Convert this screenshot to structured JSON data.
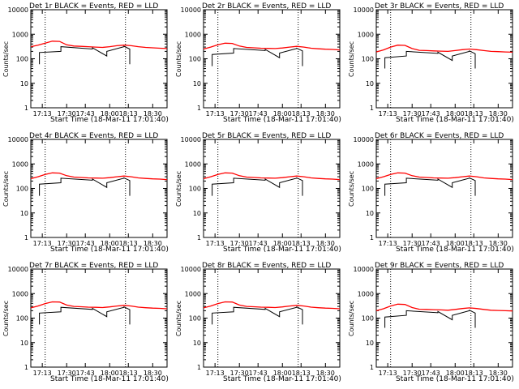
{
  "chart_data": [
    {
      "type": "line",
      "title": "Det 1r BLACK = Events, RED = LLD",
      "xlabel": "Start Time (18-Mar-11 17:01:40)",
      "ylabel": "Counts/sec",
      "yscale": "log",
      "ylim": [
        1,
        10000
      ],
      "xlim": [
        "17:05",
        "18:40"
      ],
      "x_ticks": [
        "17:13",
        "17:30",
        "17:43",
        "18:00",
        "18:13",
        "18:30"
      ],
      "y_ticks": [
        "1",
        "10",
        "100",
        "1000",
        "10000"
      ],
      "vlines": [
        "17:15",
        "18:11"
      ],
      "series": [
        {
          "color": "#ff0000",
          "x": [
            "17:05",
            "17:10",
            "17:15",
            "17:20",
            "17:25",
            "17:30",
            "17:35",
            "17:40",
            "17:45",
            "17:50",
            "17:55",
            "18:00",
            "18:05",
            "18:10",
            "18:15",
            "18:20",
            "18:25",
            "18:30",
            "18:35",
            "18:40"
          ],
          "values": [
            310,
            360,
            430,
            520,
            510,
            370,
            330,
            320,
            310,
            300,
            290,
            310,
            340,
            360,
            340,
            310,
            290,
            280,
            270,
            260
          ]
        },
        {
          "color": "#000000",
          "x": [
            "17:11",
            "17:11",
            "17:26",
            "17:26",
            "17:48",
            "17:48",
            "17:58",
            "17:58",
            "18:10",
            "18:10",
            "18:14",
            "18:14"
          ],
          "values": [
            60,
            180,
            200,
            310,
            250,
            280,
            130,
            200,
            310,
            320,
            250,
            60
          ]
        }
      ]
    },
    {
      "type": "line",
      "title": "Det 2r BLACK = Events, RED = LLD",
      "xlabel": "Start Time (18-Mar-11 17:01:40)",
      "ylabel": "Counts/sec",
      "yscale": "log",
      "ylim": [
        1,
        10000
      ],
      "xlim": [
        "17:05",
        "18:40"
      ],
      "x_ticks": [
        "17:13",
        "17:30",
        "17:43",
        "18:00",
        "18:13",
        "18:30"
      ],
      "y_ticks": [
        "1",
        "10",
        "100",
        "1000",
        "10000"
      ],
      "vlines": [
        "17:15",
        "18:11"
      ],
      "series": [
        {
          "color": "#ff0000",
          "x": [
            "17:05",
            "17:10",
            "17:15",
            "17:20",
            "17:25",
            "17:30",
            "17:35",
            "17:40",
            "17:45",
            "17:50",
            "17:55",
            "18:00",
            "18:05",
            "18:10",
            "18:15",
            "18:20",
            "18:25",
            "18:30",
            "18:35",
            "18:40"
          ],
          "values": [
            250,
            300,
            370,
            430,
            420,
            330,
            290,
            280,
            270,
            265,
            260,
            275,
            300,
            320,
            300,
            270,
            255,
            245,
            240,
            230
          ]
        },
        {
          "color": "#000000",
          "x": [
            "17:11",
            "17:11",
            "17:26",
            "17:26",
            "17:48",
            "17:48",
            "17:58",
            "17:58",
            "18:10",
            "18:10",
            "18:14",
            "18:14"
          ],
          "values": [
            50,
            150,
            170,
            260,
            215,
            240,
            110,
            170,
            260,
            270,
            210,
            50
          ]
        }
      ]
    },
    {
      "type": "line",
      "title": "Det 3r BLACK = Events, RED = LLD",
      "xlabel": "Start Time (18-Mar-11 17:01:40)",
      "ylabel": "Counts/sec",
      "yscale": "log",
      "ylim": [
        1,
        10000
      ],
      "xlim": [
        "17:05",
        "18:40"
      ],
      "x_ticks": [
        "17:13",
        "17:30",
        "17:43",
        "18:00",
        "18:13",
        "18:30"
      ],
      "y_ticks": [
        "1",
        "10",
        "100",
        "1000",
        "10000"
      ],
      "vlines": [
        "17:15",
        "18:11"
      ],
      "series": [
        {
          "color": "#ff0000",
          "x": [
            "17:05",
            "17:10",
            "17:15",
            "17:20",
            "17:25",
            "17:30",
            "17:35",
            "17:40",
            "17:45",
            "17:50",
            "17:55",
            "18:00",
            "18:05",
            "18:10",
            "18:15",
            "18:20",
            "18:25",
            "18:30",
            "18:35",
            "18:40"
          ],
          "values": [
            190,
            230,
            300,
            360,
            350,
            260,
            220,
            215,
            210,
            205,
            200,
            215,
            235,
            250,
            235,
            215,
            200,
            195,
            190,
            185
          ]
        },
        {
          "color": "#000000",
          "x": [
            "17:11",
            "17:11",
            "17:26",
            "17:26",
            "17:48",
            "17:48",
            "17:58",
            "17:58",
            "18:10",
            "18:10",
            "18:14",
            "18:14"
          ],
          "values": [
            40,
            110,
            130,
            200,
            165,
            185,
            85,
            130,
            200,
            210,
            160,
            40
          ]
        }
      ]
    },
    {
      "type": "line",
      "title": "Det 4r BLACK = Events, RED = LLD",
      "xlabel": "Start Time (18-Mar-11 17:01:40)",
      "ylabel": "Counts/sec",
      "yscale": "log",
      "ylim": [
        1,
        10000
      ],
      "xlim": [
        "17:05",
        "18:40"
      ],
      "x_ticks": [
        "17:13",
        "17:30",
        "17:43",
        "18:00",
        "18:13",
        "18:30"
      ],
      "y_ticks": [
        "1",
        "10",
        "100",
        "1000",
        "10000"
      ],
      "vlines": [
        "17:15",
        "18:11"
      ],
      "series": [
        {
          "color": "#ff0000",
          "x": [
            "17:05",
            "17:10",
            "17:15",
            "17:20",
            "17:25",
            "17:30",
            "17:35",
            "17:40",
            "17:45",
            "17:50",
            "17:55",
            "18:00",
            "18:05",
            "18:10",
            "18:15",
            "18:20",
            "18:25",
            "18:30",
            "18:35",
            "18:40"
          ],
          "values": [
            250,
            300,
            370,
            430,
            420,
            330,
            290,
            280,
            270,
            265,
            260,
            275,
            300,
            320,
            300,
            270,
            255,
            245,
            240,
            230
          ]
        },
        {
          "color": "#000000",
          "x": [
            "17:11",
            "17:11",
            "17:26",
            "17:26",
            "17:48",
            "17:48",
            "17:58",
            "17:58",
            "18:10",
            "18:10",
            "18:14",
            "18:14"
          ],
          "values": [
            50,
            150,
            170,
            260,
            215,
            240,
            110,
            170,
            260,
            270,
            210,
            50
          ]
        }
      ]
    },
    {
      "type": "line",
      "title": "Det 5r BLACK = Events, RED = LLD",
      "xlabel": "Start Time (18-Mar-11 17:01:40)",
      "ylabel": "Counts/sec",
      "yscale": "log",
      "ylim": [
        1,
        10000
      ],
      "xlim": [
        "17:05",
        "18:40"
      ],
      "x_ticks": [
        "17:13",
        "17:30",
        "17:43",
        "18:00",
        "18:13",
        "18:30"
      ],
      "y_ticks": [
        "1",
        "10",
        "100",
        "1000",
        "10000"
      ],
      "vlines": [
        "17:15",
        "18:11"
      ],
      "series": [
        {
          "color": "#ff0000",
          "x": [
            "17:05",
            "17:10",
            "17:15",
            "17:20",
            "17:25",
            "17:30",
            "17:35",
            "17:40",
            "17:45",
            "17:50",
            "17:55",
            "18:00",
            "18:05",
            "18:10",
            "18:15",
            "18:20",
            "18:25",
            "18:30",
            "18:35",
            "18:40"
          ],
          "values": [
            250,
            300,
            370,
            430,
            420,
            330,
            290,
            280,
            270,
            265,
            260,
            275,
            300,
            320,
            300,
            270,
            255,
            245,
            240,
            230
          ]
        },
        {
          "color": "#000000",
          "x": [
            "17:11",
            "17:11",
            "17:26",
            "17:26",
            "17:48",
            "17:48",
            "17:58",
            "17:58",
            "18:10",
            "18:10",
            "18:14",
            "18:14"
          ],
          "values": [
            50,
            150,
            170,
            260,
            215,
            240,
            110,
            170,
            260,
            270,
            210,
            50
          ]
        }
      ]
    },
    {
      "type": "line",
      "title": "Det 6r BLACK = Events, RED = LLD",
      "xlabel": "Start Time (18-Mar-11 17:01:40)",
      "ylabel": "Counts/sec",
      "yscale": "log",
      "ylim": [
        1,
        10000
      ],
      "xlim": [
        "17:05",
        "18:40"
      ],
      "x_ticks": [
        "17:13",
        "17:30",
        "17:43",
        "18:00",
        "18:13",
        "18:30"
      ],
      "y_ticks": [
        "1",
        "10",
        "100",
        "1000",
        "10000"
      ],
      "vlines": [
        "17:15",
        "18:11"
      ],
      "series": [
        {
          "color": "#ff0000",
          "x": [
            "17:05",
            "17:10",
            "17:15",
            "17:20",
            "17:25",
            "17:30",
            "17:35",
            "17:40",
            "17:45",
            "17:50",
            "17:55",
            "18:00",
            "18:05",
            "18:10",
            "18:15",
            "18:20",
            "18:25",
            "18:30",
            "18:35",
            "18:40"
          ],
          "values": [
            250,
            300,
            370,
            430,
            420,
            330,
            290,
            280,
            270,
            265,
            260,
            275,
            300,
            320,
            300,
            270,
            255,
            245,
            240,
            230
          ]
        },
        {
          "color": "#000000",
          "x": [
            "17:11",
            "17:11",
            "17:26",
            "17:26",
            "17:48",
            "17:48",
            "17:58",
            "17:58",
            "18:10",
            "18:10",
            "18:14",
            "18:14"
          ],
          "values": [
            50,
            150,
            170,
            260,
            215,
            240,
            110,
            170,
            260,
            270,
            210,
            50
          ]
        }
      ]
    },
    {
      "type": "line",
      "title": "Det 7r BLACK = Events, RED = LLD",
      "xlabel": "Start Time (18-Mar-11 17:01:40)",
      "ylabel": "Counts/sec",
      "yscale": "log",
      "ylim": [
        1,
        10000
      ],
      "xlim": [
        "17:05",
        "18:40"
      ],
      "x_ticks": [
        "17:13",
        "17:30",
        "17:43",
        "18:00",
        "18:13",
        "18:30"
      ],
      "y_ticks": [
        "1",
        "10",
        "100",
        "1000",
        "10000"
      ],
      "vlines": [
        "17:15",
        "18:11"
      ],
      "series": [
        {
          "color": "#ff0000",
          "x": [
            "17:05",
            "17:10",
            "17:15",
            "17:20",
            "17:25",
            "17:30",
            "17:35",
            "17:40",
            "17:45",
            "17:50",
            "17:55",
            "18:00",
            "18:05",
            "18:10",
            "18:15",
            "18:20",
            "18:25",
            "18:30",
            "18:35",
            "18:40"
          ],
          "values": [
            260,
            310,
            390,
            460,
            450,
            340,
            300,
            290,
            280,
            275,
            270,
            285,
            310,
            330,
            310,
            280,
            265,
            255,
            250,
            240
          ]
        },
        {
          "color": "#000000",
          "x": [
            "17:11",
            "17:11",
            "17:26",
            "17:26",
            "17:48",
            "17:48",
            "17:58",
            "17:58",
            "18:10",
            "18:10",
            "18:14",
            "18:14"
          ],
          "values": [
            55,
            160,
            180,
            275,
            225,
            250,
            115,
            180,
            275,
            285,
            220,
            55
          ]
        }
      ]
    },
    {
      "type": "line",
      "title": "Det 8r BLACK = Events, RED = LLD",
      "xlabel": "Start Time (18-Mar-11 17:01:40)",
      "ylabel": "Counts/sec",
      "yscale": "log",
      "ylim": [
        1,
        10000
      ],
      "xlim": [
        "17:05",
        "18:40"
      ],
      "x_ticks": [
        "17:13",
        "17:30",
        "17:43",
        "18:00",
        "18:13",
        "18:30"
      ],
      "y_ticks": [
        "1",
        "10",
        "100",
        "1000",
        "10000"
      ],
      "vlines": [
        "17:15",
        "18:11"
      ],
      "series": [
        {
          "color": "#ff0000",
          "x": [
            "17:05",
            "17:10",
            "17:15",
            "17:20",
            "17:25",
            "17:30",
            "17:35",
            "17:40",
            "17:45",
            "17:50",
            "17:55",
            "18:00",
            "18:05",
            "18:10",
            "18:15",
            "18:20",
            "18:25",
            "18:30",
            "18:35",
            "18:40"
          ],
          "values": [
            260,
            310,
            390,
            460,
            450,
            340,
            300,
            290,
            280,
            275,
            270,
            285,
            310,
            330,
            310,
            280,
            265,
            255,
            250,
            240
          ]
        },
        {
          "color": "#000000",
          "x": [
            "17:11",
            "17:11",
            "17:26",
            "17:26",
            "17:48",
            "17:48",
            "17:58",
            "17:58",
            "18:10",
            "18:10",
            "18:14",
            "18:14"
          ],
          "values": [
            55,
            160,
            180,
            275,
            225,
            250,
            115,
            180,
            275,
            285,
            220,
            55
          ]
        }
      ]
    },
    {
      "type": "line",
      "title": "Det 9r BLACK = Events, RED = LLD",
      "xlabel": "Start Time (18-Mar-11 17:01:40)",
      "ylabel": "Counts/sec",
      "yscale": "log",
      "ylim": [
        1,
        10000
      ],
      "xlim": [
        "17:05",
        "18:40"
      ],
      "x_ticks": [
        "17:13",
        "17:30",
        "17:43",
        "18:00",
        "18:13",
        "18:30"
      ],
      "y_ticks": [
        "1",
        "10",
        "100",
        "1000",
        "10000"
      ],
      "vlines": [
        "17:15",
        "18:11"
      ],
      "series": [
        {
          "color": "#ff0000",
          "x": [
            "17:05",
            "17:10",
            "17:15",
            "17:20",
            "17:25",
            "17:30",
            "17:35",
            "17:40",
            "17:45",
            "17:50",
            "17:55",
            "18:00",
            "18:05",
            "18:10",
            "18:15",
            "18:20",
            "18:25",
            "18:30",
            "18:35",
            "18:40"
          ],
          "values": [
            200,
            240,
            310,
            370,
            360,
            270,
            230,
            225,
            220,
            215,
            210,
            225,
            245,
            260,
            245,
            225,
            210,
            205,
            200,
            195
          ]
        },
        {
          "color": "#000000",
          "x": [
            "17:11",
            "17:11",
            "17:26",
            "17:26",
            "17:48",
            "17:48",
            "17:58",
            "17:58",
            "18:10",
            "18:10",
            "18:14",
            "18:14"
          ],
          "values": [
            40,
            110,
            130,
            200,
            165,
            185,
            85,
            130,
            200,
            210,
            160,
            40
          ]
        }
      ]
    }
  ]
}
